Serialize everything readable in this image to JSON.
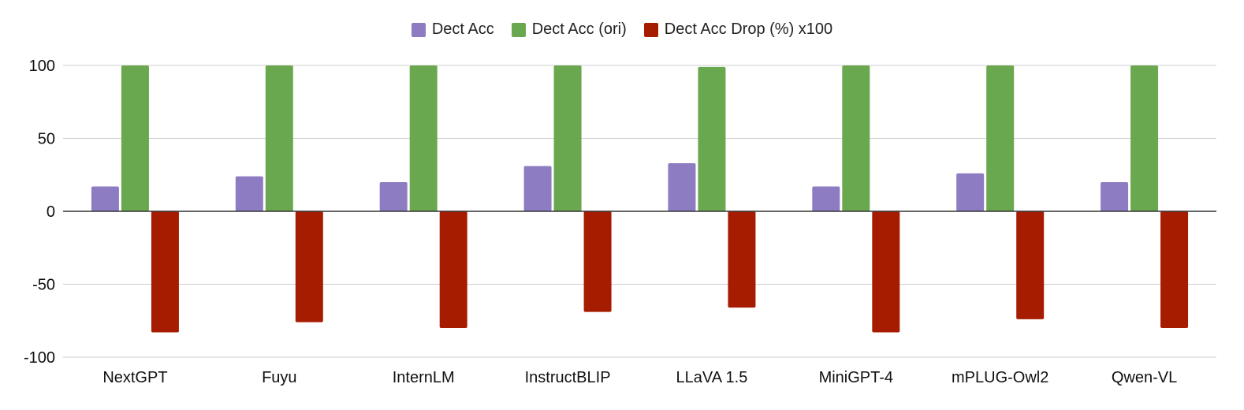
{
  "chart_data": {
    "type": "bar",
    "title": "",
    "xlabel": "",
    "ylabel": "",
    "ylim": [
      -100,
      100
    ],
    "yticks": [
      100,
      50,
      0,
      -50,
      -100
    ],
    "grid": true,
    "legend_position": "top-center",
    "categories": [
      "NextGPT",
      "Fuyu",
      "InternLM",
      "InstructBLIP",
      "LLaVA 1.5",
      "MiniGPT-4",
      "mPLUG-Owl2",
      "Qwen-VL"
    ],
    "series": [
      {
        "name": "Dect Acc",
        "color": "#8e7cc3",
        "values": [
          17,
          24,
          20,
          31,
          33,
          17,
          26,
          20
        ]
      },
      {
        "name": "Dect Acc (ori)",
        "color": "#6aa84f",
        "values": [
          100,
          100,
          100,
          100,
          99,
          100,
          100,
          100
        ]
      },
      {
        "name": "Dect Acc Drop (%) x100",
        "color": "#a61c00",
        "values": [
          -83,
          -76,
          -80,
          -69,
          -66,
          -83,
          -74,
          -80
        ]
      }
    ]
  }
}
